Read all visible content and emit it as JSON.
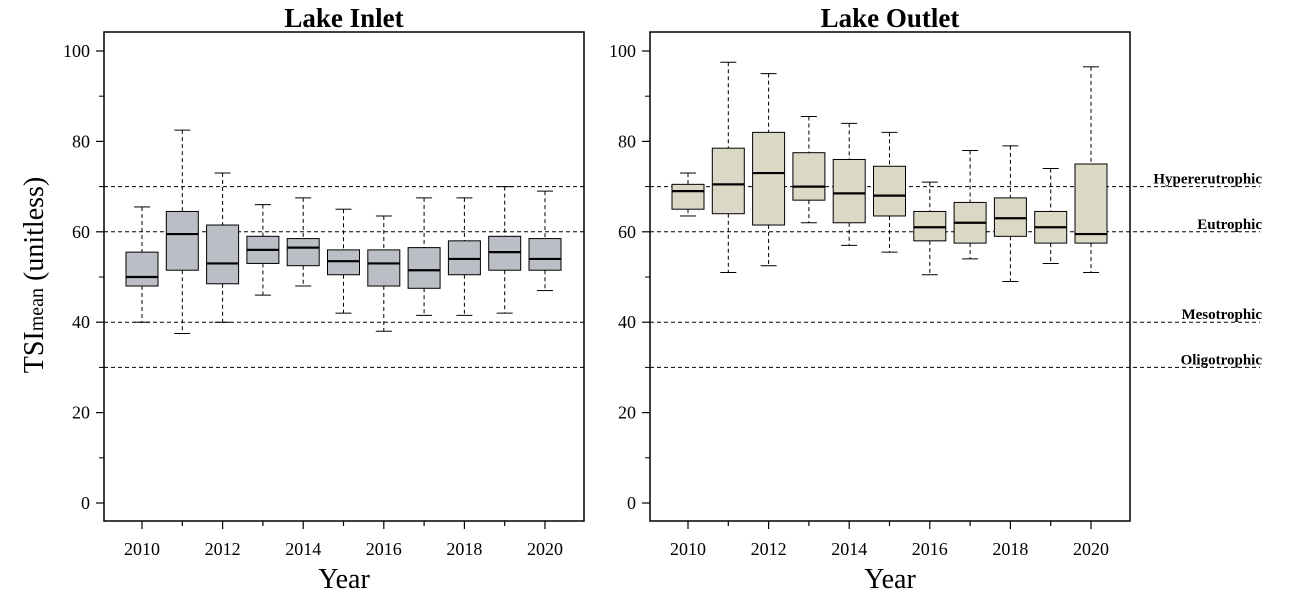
{
  "chart_data": [
    {
      "type": "box",
      "title": "Lake Inlet",
      "xlabel": "Year",
      "ylabel_main": "TSI",
      "ylabel_sub": "mean",
      "ylabel_tail": " (unitless)",
      "ylim": [
        0,
        100
      ],
      "yticks": [
        0,
        20,
        40,
        60,
        80,
        100
      ],
      "xticks": [
        2010,
        2012,
        2014,
        2016,
        2018,
        2020
      ],
      "fill": "#bcbec6",
      "boxes": [
        {
          "year": 2010,
          "min": 40,
          "q1": 48,
          "median": 50,
          "q3": 55.5,
          "max": 65.5
        },
        {
          "year": 2011,
          "min": 37.5,
          "q1": 51.5,
          "median": 59.5,
          "q3": 64.5,
          "max": 82.5
        },
        {
          "year": 2012,
          "min": 40,
          "q1": 48.5,
          "median": 53,
          "q3": 61.5,
          "max": 73
        },
        {
          "year": 2013,
          "min": 46,
          "q1": 53,
          "median": 56,
          "q3": 59,
          "max": 66
        },
        {
          "year": 2014,
          "min": 48,
          "q1": 52.5,
          "median": 56.5,
          "q3": 58.5,
          "max": 67.5
        },
        {
          "year": 2015,
          "min": 42,
          "q1": 50.5,
          "median": 53.5,
          "q3": 56,
          "max": 65
        },
        {
          "year": 2016,
          "min": 38,
          "q1": 48,
          "median": 53,
          "q3": 56,
          "max": 63.5
        },
        {
          "year": 2017,
          "min": 41.5,
          "q1": 47.5,
          "median": 51.5,
          "q3": 56.5,
          "max": 67.5
        },
        {
          "year": 2018,
          "min": 41.5,
          "q1": 50.5,
          "median": 54,
          "q3": 58,
          "max": 67.5
        },
        {
          "year": 2019,
          "min": 42,
          "q1": 51.5,
          "median": 55.5,
          "q3": 59,
          "max": 70
        },
        {
          "year": 2020,
          "min": 47,
          "q1": 51.5,
          "median": 54,
          "q3": 58.5,
          "max": 69
        }
      ],
      "reference_lines": [
        70,
        60,
        40,
        30
      ]
    },
    {
      "type": "box",
      "title": "Lake Outlet",
      "xlabel": "Year",
      "ylim": [
        0,
        100
      ],
      "yticks": [
        0,
        20,
        40,
        60,
        80,
        100
      ],
      "xticks": [
        2010,
        2012,
        2014,
        2016,
        2018,
        2020
      ],
      "fill": "#dcd8c6",
      "boxes": [
        {
          "year": 2010,
          "min": 63.5,
          "q1": 65,
          "median": 69,
          "q3": 70.5,
          "max": 73
        },
        {
          "year": 2011,
          "min": 51,
          "q1": 64,
          "median": 70.5,
          "q3": 78.5,
          "max": 97.5
        },
        {
          "year": 2012,
          "min": 52.5,
          "q1": 61.5,
          "median": 73,
          "q3": 82,
          "max": 95
        },
        {
          "year": 2013,
          "min": 62,
          "q1": 67,
          "median": 70,
          "q3": 77.5,
          "max": 85.5
        },
        {
          "year": 2014,
          "min": 57,
          "q1": 62,
          "median": 68.5,
          "q3": 76,
          "max": 84
        },
        {
          "year": 2015,
          "min": 55.5,
          "q1": 63.5,
          "median": 68,
          "q3": 74.5,
          "max": 82
        },
        {
          "year": 2016,
          "min": 50.5,
          "q1": 58,
          "median": 61,
          "q3": 64.5,
          "max": 71
        },
        {
          "year": 2017,
          "min": 54,
          "q1": 57.5,
          "median": 62,
          "q3": 66.5,
          "max": 78
        },
        {
          "year": 2018,
          "min": 49,
          "q1": 59,
          "median": 63,
          "q3": 67.5,
          "max": 79
        },
        {
          "year": 2019,
          "min": 53,
          "q1": 57.5,
          "median": 61,
          "q3": 64.5,
          "max": 74
        },
        {
          "year": 2020,
          "min": 51,
          "q1": 57.5,
          "median": 59.5,
          "q3": 75,
          "max": 96.5
        }
      ],
      "reference_lines": [
        {
          "value": 70,
          "label": "Hypererutrophic"
        },
        {
          "value": 60,
          "label": "Eutrophic"
        },
        {
          "value": 40,
          "label": "Mesotrophic"
        },
        {
          "value": 30,
          "label": "Oligotrophic"
        }
      ]
    }
  ]
}
